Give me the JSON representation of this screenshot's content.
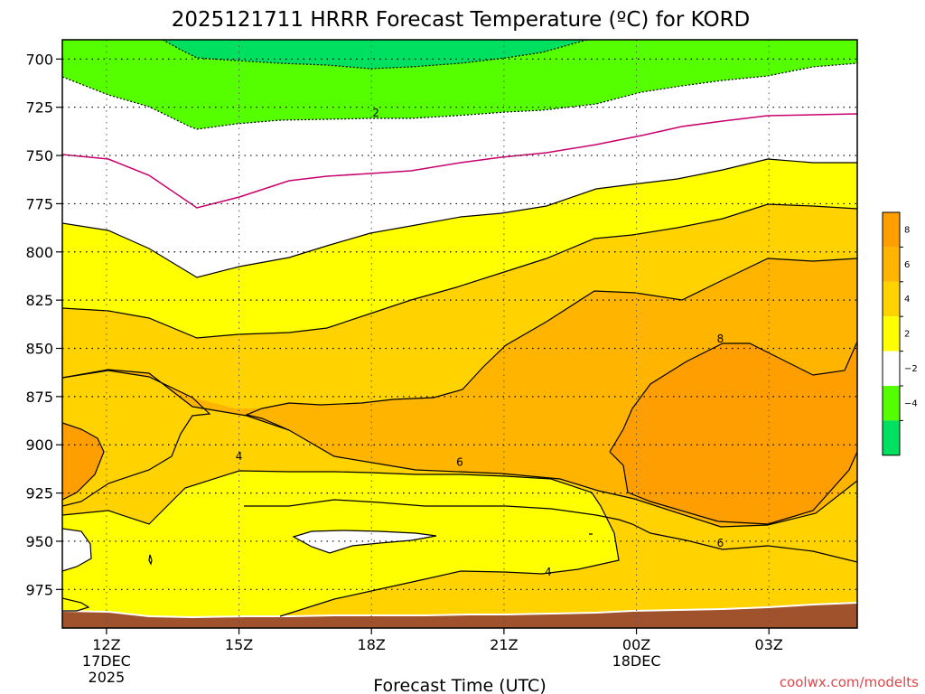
{
  "chart_data": {
    "type": "contour",
    "title": "2025121711 HRRR Forecast Temperature (ºC) for KORD",
    "xlabel": "Forecast Time (UTC)",
    "ylabel": "",
    "credit": "coolwx.com/modelts",
    "x_ticks": [
      {
        "time": "12Z",
        "date": "17DEC",
        "year": "2025"
      },
      {
        "time": "15Z",
        "date": "",
        "year": ""
      },
      {
        "time": "18Z",
        "date": "",
        "year": ""
      },
      {
        "time": "21Z",
        "date": "",
        "year": ""
      },
      {
        "time": "00Z",
        "date": "18DEC",
        "year": ""
      },
      {
        "time": "03Z",
        "date": "",
        "year": ""
      }
    ],
    "x_hours": [
      12,
      15,
      18,
      21,
      24,
      27
    ],
    "xlim": [
      11,
      29
    ],
    "y_ticks": [
      700,
      725,
      750,
      775,
      800,
      825,
      850,
      875,
      900,
      925,
      950,
      975
    ],
    "ylim": [
      690,
      995
    ],
    "grid": true,
    "contour_labels": [
      {
        "text": "2",
        "hour": 18.1,
        "pressure": 728
      },
      {
        "text": "4",
        "hour": 15.0,
        "pressure": 906
      },
      {
        "text": "6",
        "hour": 20.0,
        "pressure": 909
      },
      {
        "text": "8",
        "hour": 25.9,
        "pressure": 845
      },
      {
        "text": "6",
        "hour": 25.9,
        "pressure": 951
      },
      {
        "text": "4",
        "hour": 22.0,
        "pressure": 966
      }
    ],
    "colorbar": {
      "ticks": [
        "8",
        "6",
        "4",
        "2",
        "−2",
        "−4"
      ],
      "colors": [
        "#ff9e00",
        "#ffb400",
        "#ffd200",
        "#ffff00",
        "#ffffff",
        "#55ff00",
        "#00e060"
      ]
    },
    "fills": {
      "green_dark": "#00e060",
      "green": "#55ff00",
      "white": "#ffffff",
      "yellow": "#ffff00",
      "gold": "#ffd200",
      "orange": "#ffb400",
      "dark_orange": "#ff9e00",
      "ground": "#a0522d",
      "zero_line": "#c8006e"
    }
  }
}
